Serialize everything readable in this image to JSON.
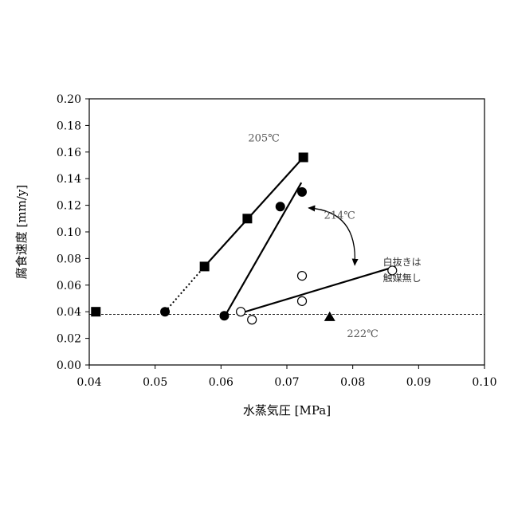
{
  "chart_data": {
    "type": "scatter",
    "xlabel": "水蒸気圧 [MPa]",
    "ylabel": "腐食速度 [mm/y]",
    "xlim": [
      0.04,
      0.1
    ],
    "ylim": [
      0.0,
      0.2
    ],
    "x_ticks": [
      "0.04",
      "0.05",
      "0.06",
      "0.07",
      "0.08",
      "0.09",
      "0.10"
    ],
    "y_ticks": [
      "0.00",
      "0.02",
      "0.04",
      "0.06",
      "0.08",
      "0.10",
      "0.12",
      "0.14",
      "0.16",
      "0.18",
      "0.20"
    ],
    "grid": false,
    "series": [
      {
        "marker": "square-filled",
        "points": [
          [
            0.041,
            0.04
          ],
          [
            0.0575,
            0.074
          ],
          [
            0.064,
            0.11
          ],
          [
            0.0725,
            0.156
          ]
        ]
      },
      {
        "marker": "circle-filled",
        "points": [
          [
            0.0515,
            0.04
          ],
          [
            0.0605,
            0.037
          ],
          [
            0.069,
            0.119
          ],
          [
            0.0723,
            0.13
          ]
        ]
      },
      {
        "marker": "circle-open",
        "points": [
          [
            0.063,
            0.04
          ],
          [
            0.0647,
            0.034
          ],
          [
            0.0723,
            0.048
          ],
          [
            0.0723,
            0.067
          ],
          [
            0.086,
            0.071
          ]
        ]
      },
      {
        "marker": "triangle-filled",
        "points": [
          [
            0.0765,
            0.036
          ]
        ]
      }
    ],
    "fit_lines": [
      {
        "style": "solid",
        "from": [
          0.0575,
          0.074
        ],
        "to": [
          0.0725,
          0.156
        ]
      },
      {
        "style": "dotted",
        "from": [
          0.0515,
          0.04
        ],
        "to": [
          0.0575,
          0.074
        ]
      },
      {
        "style": "solid",
        "from": [
          0.0605,
          0.036
        ],
        "to": [
          0.0722,
          0.137
        ]
      },
      {
        "style": "solid",
        "from": [
          0.063,
          0.039
        ],
        "to": [
          0.0865,
          0.074
        ]
      }
    ],
    "baseline": {
      "style": "dashed",
      "y": 0.038
    },
    "annotations": [
      {
        "text": "205℃",
        "x": 0.0665,
        "y": 0.168
      },
      {
        "text": "214℃",
        "x": 0.078,
        "y": 0.11
      },
      {
        "text": "222℃",
        "x": 0.0815,
        "y": 0.021
      },
      {
        "text": "白抜きは",
        "x": 0.0875,
        "y": 0.075
      },
      {
        "text": "触媒無し",
        "x": 0.0875,
        "y": 0.063
      }
    ],
    "arrow": {
      "from": [
        0.0733,
        0.118
      ],
      "to": [
        0.0803,
        0.075
      ]
    }
  }
}
